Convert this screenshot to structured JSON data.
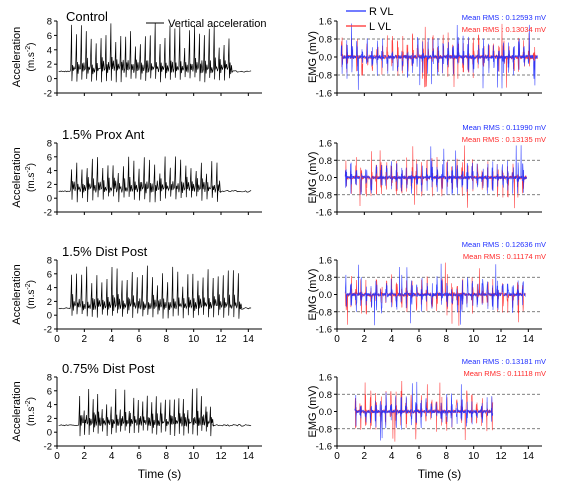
{
  "figure": {
    "colors": {
      "acc": "#000000",
      "right": "#1f2fff",
      "left": "#ff2a2a",
      "axis": "#000000",
      "refline": "#555555"
    },
    "acc_xlabel": "Time (s)",
    "emg_xlabel": "Time (s)",
    "acc_ylabel_main": "Acceleration",
    "acc_ylabel_unit": "(m.s",
    "acc_ylabel_exp": "-2",
    "acc_ylabel_close": ")",
    "emg_ylabel": "EMG (mV)",
    "acc_legend": "Vertical acceleration",
    "emg_legend_right": "R VL",
    "emg_legend_left": "L VL",
    "rows": [
      {
        "condition": "Control",
        "rms_right": "Mean RMS : 0.12593 mV",
        "rms_left": "Mean RMS : 0.13034 mV"
      },
      {
        "condition": "1.5% Prox Ant",
        "rms_right": "Mean RMS : 0.11990 mV",
        "rms_left": "Mean RMS : 0.13135 mV"
      },
      {
        "condition": "1.5% Dist Post",
        "rms_right": "Mean RMS : 0.12636 mV",
        "rms_left": "Mean RMS : 0.11174 mV"
      },
      {
        "condition": "0.75% Dist Post",
        "rms_right": "Mean RMS : 0.13181 mV",
        "rms_left": "Mean RMS : 0.11118 mV"
      }
    ]
  },
  "chart_data": [
    {
      "type": "line",
      "panel": "acc-0",
      "series": [
        {
          "name": "Vertical acceleration"
        }
      ],
      "xlim": [
        0,
        15
      ],
      "ylim": [
        -2,
        8
      ],
      "xticks": [
        0,
        2,
        4,
        6,
        8,
        10,
        12,
        14
      ],
      "yticks": [
        -2,
        0,
        2,
        4,
        6,
        8
      ],
      "active": [
        1.0,
        12.8
      ],
      "step": 0.36,
      "peak_range": [
        4.2,
        7.8
      ],
      "baseline": 1.0
    },
    {
      "type": "line",
      "panel": "emg-0",
      "series": [
        {
          "name": "R VL"
        },
        {
          "name": "L VL"
        }
      ],
      "xlim": [
        0,
        15
      ],
      "ylim": [
        -1.6,
        1.6
      ],
      "xticks": [
        0,
        2,
        4,
        6,
        8,
        10,
        12,
        14
      ],
      "yticks": [
        -1.6,
        -0.8,
        0.0,
        0.8,
        1.6
      ],
      "refline_mV": 0.8,
      "active": [
        0.3,
        14.7
      ],
      "burst_amp": 1.1
    },
    {
      "type": "line",
      "panel": "acc-1",
      "series": [
        {
          "name": "Vertical acceleration"
        }
      ],
      "xlim": [
        0,
        15
      ],
      "ylim": [
        -2,
        8
      ],
      "xticks": [
        0,
        2,
        4,
        6,
        8,
        10,
        12,
        14
      ],
      "yticks": [
        -2,
        0,
        2,
        4,
        6,
        8
      ],
      "active": [
        1.0,
        11.9
      ],
      "step": 0.38,
      "peak_range": [
        3.5,
        6.3
      ],
      "baseline": 1.0
    },
    {
      "type": "line",
      "panel": "emg-1",
      "series": [
        {
          "name": "R VL"
        },
        {
          "name": "L VL"
        }
      ],
      "xlim": [
        0,
        15
      ],
      "ylim": [
        -1.6,
        1.6
      ],
      "xticks": [
        0,
        2,
        4,
        6,
        8,
        10,
        12,
        14
      ],
      "yticks": [
        -1.6,
        -0.8,
        0.0,
        0.8,
        1.6
      ],
      "refline_mV": 0.8,
      "active": [
        0.6,
        13.9
      ],
      "burst_amp": 1.0
    },
    {
      "type": "line",
      "panel": "acc-2",
      "series": [
        {
          "name": "Vertical acceleration"
        }
      ],
      "xlim": [
        0,
        15
      ],
      "ylim": [
        -2,
        8
      ],
      "xticks": [
        0,
        2,
        4,
        6,
        8,
        10,
        12,
        14
      ],
      "yticks": [
        -2,
        0,
        2,
        4,
        6,
        8
      ],
      "active": [
        1.0,
        13.3
      ],
      "step": 0.37,
      "peak_range": [
        4.0,
        7.2
      ],
      "baseline": 1.0
    },
    {
      "type": "line",
      "panel": "emg-2",
      "series": [
        {
          "name": "R VL"
        },
        {
          "name": "L VL"
        }
      ],
      "xlim": [
        0,
        15
      ],
      "ylim": [
        -1.6,
        1.6
      ],
      "xticks": [
        0,
        2,
        4,
        6,
        8,
        10,
        12,
        14
      ],
      "yticks": [
        -1.6,
        -0.8,
        0.0,
        0.8,
        1.6
      ],
      "refline_mV": 0.8,
      "active": [
        0.6,
        13.8
      ],
      "burst_amp": 1.05
    },
    {
      "type": "line",
      "panel": "acc-3",
      "series": [
        {
          "name": "Vertical acceleration"
        }
      ],
      "xlim": [
        0,
        15
      ],
      "ylim": [
        -2,
        8
      ],
      "xticks": [
        0,
        2,
        4,
        6,
        8,
        10,
        12,
        14
      ],
      "yticks": [
        -2,
        0,
        2,
        4,
        6,
        8
      ],
      "active": [
        1.6,
        11.4
      ],
      "step": 0.33,
      "peak_range": [
        3.0,
        6.5
      ],
      "baseline": 1.0
    },
    {
      "type": "line",
      "panel": "emg-3",
      "series": [
        {
          "name": "R VL"
        },
        {
          "name": "L VL"
        }
      ],
      "xlim": [
        0,
        15
      ],
      "ylim": [
        -1.6,
        1.6
      ],
      "xticks": [
        0,
        2,
        4,
        6,
        8,
        10,
        12,
        14
      ],
      "yticks": [
        -1.6,
        -0.8,
        0.0,
        0.8,
        1.6
      ],
      "refline_mV": 0.8,
      "active": [
        1.3,
        11.4
      ],
      "burst_amp": 1.0
    }
  ]
}
